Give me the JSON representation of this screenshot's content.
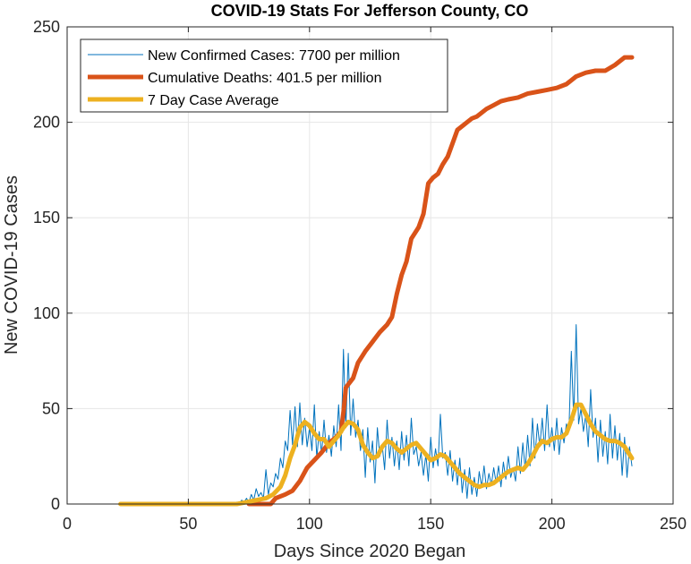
{
  "chart_data": {
    "type": "line",
    "title": "COVID-19 Stats For Jefferson County, CO",
    "xlabel": "Days Since 2020 Began",
    "ylabel": "New COVID-19 Cases",
    "xlim": [
      0,
      250
    ],
    "ylim": [
      0,
      250
    ],
    "xticks": [
      0,
      50,
      100,
      150,
      200,
      250
    ],
    "yticks": [
      0,
      50,
      100,
      150,
      200,
      250
    ],
    "grid": true,
    "legend_position": "top-left",
    "series": [
      {
        "name": "New Confirmed Cases: 7700 per million",
        "color": "#0072BD",
        "line_weight": "thin",
        "points": [
          [
            22,
            0
          ],
          [
            30,
            0
          ],
          [
            40,
            0
          ],
          [
            50,
            0
          ],
          [
            60,
            0
          ],
          [
            68,
            0
          ],
          [
            70,
            1
          ],
          [
            71,
            0
          ],
          [
            72,
            2
          ],
          [
            73,
            1
          ],
          [
            74,
            3
          ],
          [
            75,
            1
          ],
          [
            76,
            5
          ],
          [
            77,
            2
          ],
          [
            78,
            8
          ],
          [
            79,
            4
          ],
          [
            80,
            6
          ],
          [
            81,
            3
          ],
          [
            82,
            18
          ],
          [
            83,
            5
          ],
          [
            84,
            11
          ],
          [
            85,
            9
          ],
          [
            86,
            16
          ],
          [
            87,
            13
          ],
          [
            88,
            24
          ],
          [
            89,
            19
          ],
          [
            90,
            33
          ],
          [
            91,
            28
          ],
          [
            92,
            49
          ],
          [
            93,
            31
          ],
          [
            94,
            51
          ],
          [
            95,
            30
          ],
          [
            96,
            53
          ],
          [
            97,
            31
          ],
          [
            98,
            45
          ],
          [
            99,
            30
          ],
          [
            100,
            40
          ],
          [
            101,
            28
          ],
          [
            102,
            52
          ],
          [
            103,
            24
          ],
          [
            104,
            38
          ],
          [
            105,
            26
          ],
          [
            106,
            44
          ],
          [
            107,
            27
          ],
          [
            108,
            36
          ],
          [
            109,
            25
          ],
          [
            110,
            41
          ],
          [
            111,
            30
          ],
          [
            112,
            52
          ],
          [
            113,
            28
          ],
          [
            114,
            81
          ],
          [
            115,
            40
          ],
          [
            116,
            79
          ],
          [
            117,
            36
          ],
          [
            118,
            55
          ],
          [
            119,
            35
          ],
          [
            120,
            44
          ],
          [
            121,
            28
          ],
          [
            122,
            39
          ],
          [
            123,
            14
          ],
          [
            124,
            40
          ],
          [
            125,
            22
          ],
          [
            126,
            33
          ],
          [
            127,
            11
          ],
          [
            128,
            40
          ],
          [
            129,
            25
          ],
          [
            130,
            31
          ],
          [
            131,
            18
          ],
          [
            132,
            44
          ],
          [
            133,
            24
          ],
          [
            134,
            35
          ],
          [
            135,
            20
          ],
          [
            136,
            33
          ],
          [
            137,
            18
          ],
          [
            138,
            38
          ],
          [
            139,
            23
          ],
          [
            140,
            36
          ],
          [
            141,
            20
          ],
          [
            142,
            45
          ],
          [
            143,
            26
          ],
          [
            144,
            30
          ],
          [
            145,
            20
          ],
          [
            146,
            27
          ],
          [
            147,
            15
          ],
          [
            148,
            26
          ],
          [
            149,
            12
          ],
          [
            150,
            35
          ],
          [
            151,
            19
          ],
          [
            152,
            29
          ],
          [
            153,
            20
          ],
          [
            154,
            47
          ],
          [
            155,
            24
          ],
          [
            156,
            27
          ],
          [
            157,
            15
          ],
          [
            158,
            28
          ],
          [
            159,
            12
          ],
          [
            160,
            23
          ],
          [
            161,
            10
          ],
          [
            162,
            24
          ],
          [
            163,
            6
          ],
          [
            164,
            18
          ],
          [
            165,
            3
          ],
          [
            166,
            19
          ],
          [
            167,
            5
          ],
          [
            168,
            14
          ],
          [
            169,
            4
          ],
          [
            170,
            17
          ],
          [
            171,
            9
          ],
          [
            172,
            20
          ],
          [
            173,
            8
          ],
          [
            174,
            16
          ],
          [
            175,
            10
          ],
          [
            176,
            19
          ],
          [
            177,
            11
          ],
          [
            178,
            20
          ],
          [
            179,
            9
          ],
          [
            180,
            22
          ],
          [
            181,
            13
          ],
          [
            182,
            25
          ],
          [
            183,
            14
          ],
          [
            184,
            19
          ],
          [
            185,
            12
          ],
          [
            186,
            30
          ],
          [
            187,
            16
          ],
          [
            188,
            32
          ],
          [
            189,
            18
          ],
          [
            190,
            36
          ],
          [
            191,
            20
          ],
          [
            192,
            45
          ],
          [
            193,
            24
          ],
          [
            194,
            42
          ],
          [
            195,
            30
          ],
          [
            196,
            45
          ],
          [
            197,
            28
          ],
          [
            198,
            52
          ],
          [
            199,
            30
          ],
          [
            200,
            40
          ],
          [
            201,
            28
          ],
          [
            202,
            45
          ],
          [
            203,
            26
          ],
          [
            204,
            40
          ],
          [
            205,
            32
          ],
          [
            206,
            42
          ],
          [
            207,
            38
          ],
          [
            208,
            80
          ],
          [
            209,
            44
          ],
          [
            210,
            94
          ],
          [
            211,
            42
          ],
          [
            212,
            50
          ],
          [
            213,
            38
          ],
          [
            214,
            47
          ],
          [
            215,
            30
          ],
          [
            216,
            60
          ],
          [
            217,
            35
          ],
          [
            218,
            45
          ],
          [
            219,
            22
          ],
          [
            220,
            44
          ],
          [
            221,
            25
          ],
          [
            222,
            38
          ],
          [
            223,
            21
          ],
          [
            224,
            47
          ],
          [
            225,
            24
          ],
          [
            226,
            41
          ],
          [
            227,
            23
          ],
          [
            228,
            37
          ],
          [
            229,
            15
          ],
          [
            230,
            35
          ],
          [
            231,
            14
          ],
          [
            232,
            30
          ],
          [
            233,
            20
          ]
        ]
      },
      {
        "name": "Cumulative Deaths: 401.5 per million",
        "color": "#D95319",
        "line_weight": "thick",
        "points": [
          [
            75,
            0
          ],
          [
            80,
            0
          ],
          [
            84,
            0
          ],
          [
            86,
            3
          ],
          [
            90,
            5
          ],
          [
            93,
            7
          ],
          [
            96,
            12
          ],
          [
            99,
            19
          ],
          [
            102,
            23
          ],
          [
            105,
            27
          ],
          [
            108,
            32
          ],
          [
            111,
            35
          ],
          [
            113,
            38
          ],
          [
            114,
            48
          ],
          [
            115,
            61
          ],
          [
            118,
            66
          ],
          [
            120,
            74
          ],
          [
            123,
            80
          ],
          [
            126,
            85
          ],
          [
            129,
            90
          ],
          [
            132,
            94
          ],
          [
            134,
            98
          ],
          [
            136,
            110
          ],
          [
            138,
            120
          ],
          [
            140,
            127
          ],
          [
            142,
            139
          ],
          [
            145,
            145
          ],
          [
            147,
            152
          ],
          [
            149,
            168
          ],
          [
            151,
            171
          ],
          [
            153,
            173
          ],
          [
            155,
            178
          ],
          [
            157,
            182
          ],
          [
            159,
            189
          ],
          [
            161,
            196
          ],
          [
            163,
            198
          ],
          [
            165,
            200
          ],
          [
            167,
            202
          ],
          [
            169,
            203
          ],
          [
            171,
            205
          ],
          [
            173,
            207
          ],
          [
            176,
            209
          ],
          [
            179,
            211
          ],
          [
            182,
            212
          ],
          [
            186,
            213
          ],
          [
            190,
            215
          ],
          [
            194,
            216
          ],
          [
            198,
            217
          ],
          [
            202,
            218
          ],
          [
            206,
            220
          ],
          [
            210,
            224
          ],
          [
            214,
            226
          ],
          [
            218,
            227
          ],
          [
            222,
            227
          ],
          [
            226,
            230
          ],
          [
            230,
            234
          ],
          [
            233,
            234
          ]
        ]
      },
      {
        "name": "7 Day Case Average",
        "color": "#EDB120",
        "line_weight": "thick",
        "points": [
          [
            22,
            0
          ],
          [
            40,
            0
          ],
          [
            60,
            0
          ],
          [
            70,
            0
          ],
          [
            74,
            1
          ],
          [
            78,
            2
          ],
          [
            82,
            3
          ],
          [
            85,
            5
          ],
          [
            88,
            9
          ],
          [
            90,
            15
          ],
          [
            92,
            24
          ],
          [
            94,
            31
          ],
          [
            96,
            40
          ],
          [
            98,
            43
          ],
          [
            100,
            41
          ],
          [
            102,
            37
          ],
          [
            104,
            34
          ],
          [
            106,
            34
          ],
          [
            108,
            30
          ],
          [
            110,
            33
          ],
          [
            112,
            36
          ],
          [
            114,
            40
          ],
          [
            116,
            43
          ],
          [
            118,
            42
          ],
          [
            120,
            39
          ],
          [
            122,
            31
          ],
          [
            124,
            27
          ],
          [
            126,
            24
          ],
          [
            128,
            25
          ],
          [
            130,
            30
          ],
          [
            132,
            33
          ],
          [
            134,
            32
          ],
          [
            136,
            29
          ],
          [
            138,
            27
          ],
          [
            140,
            29
          ],
          [
            142,
            31
          ],
          [
            144,
            32
          ],
          [
            146,
            29
          ],
          [
            148,
            26
          ],
          [
            150,
            23
          ],
          [
            152,
            24
          ],
          [
            154,
            26
          ],
          [
            156,
            25
          ],
          [
            158,
            22
          ],
          [
            160,
            19
          ],
          [
            162,
            16
          ],
          [
            164,
            14
          ],
          [
            166,
            12
          ],
          [
            168,
            10
          ],
          [
            170,
            9
          ],
          [
            172,
            10
          ],
          [
            174,
            10
          ],
          [
            176,
            11
          ],
          [
            178,
            13
          ],
          [
            180,
            15
          ],
          [
            182,
            17
          ],
          [
            184,
            18
          ],
          [
            186,
            19
          ],
          [
            188,
            18
          ],
          [
            190,
            21
          ],
          [
            192,
            25
          ],
          [
            194,
            30
          ],
          [
            196,
            33
          ],
          [
            198,
            32
          ],
          [
            200,
            34
          ],
          [
            202,
            35
          ],
          [
            204,
            35
          ],
          [
            206,
            37
          ],
          [
            208,
            44
          ],
          [
            210,
            52
          ],
          [
            212,
            52
          ],
          [
            214,
            47
          ],
          [
            216,
            42
          ],
          [
            218,
            38
          ],
          [
            220,
            36
          ],
          [
            222,
            34
          ],
          [
            224,
            33
          ],
          [
            226,
            33
          ],
          [
            228,
            32
          ],
          [
            230,
            30
          ],
          [
            233,
            24
          ]
        ]
      }
    ]
  }
}
